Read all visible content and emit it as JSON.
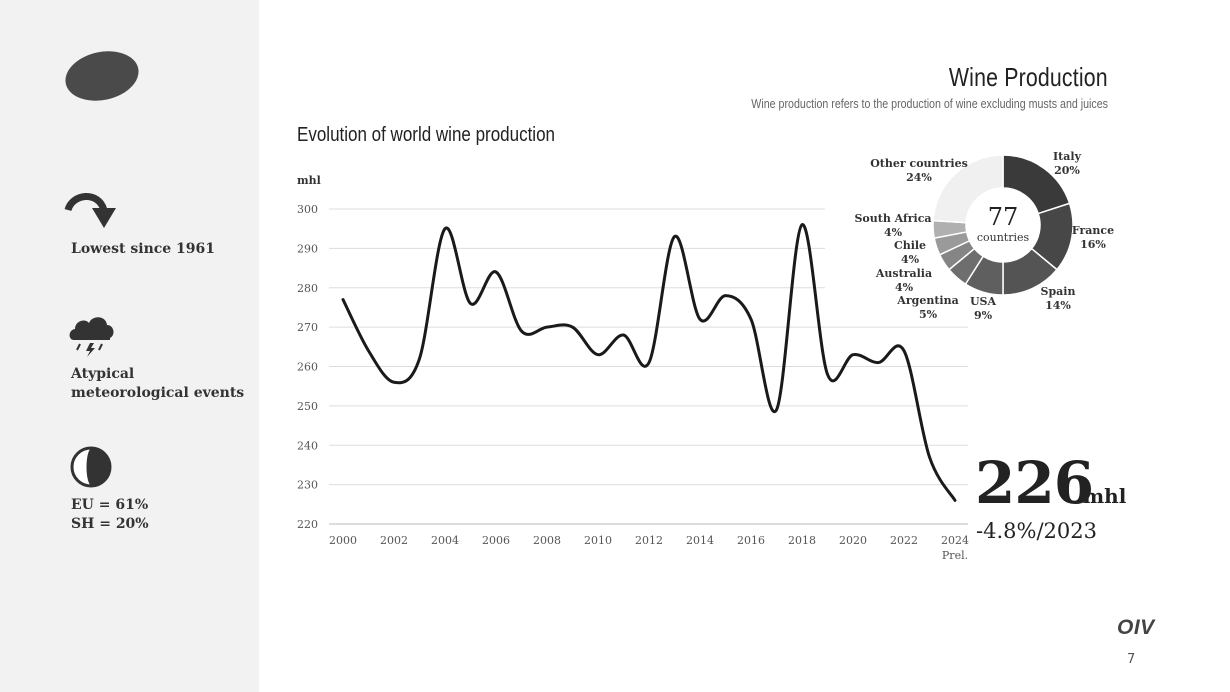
{
  "header": {
    "title": "Wine Production",
    "subtitle": "Wine production refers to the production of wine excluding musts and juices"
  },
  "sidebar": {
    "items": [
      {
        "icon": "curved-arrow-down-icon",
        "text": "Lowest since 1961"
      },
      {
        "icon": "storm-cloud-icon",
        "text": "Atypical\nmeteorological events"
      },
      {
        "icon": "half-circle-icon",
        "text": "EU = 61%\nSH = 20%"
      }
    ]
  },
  "highlight": {
    "value": "226",
    "unit": "mhl",
    "change": "-4.8%/2023"
  },
  "footer": {
    "logo": "OIV",
    "page": "7"
  },
  "chart_data": [
    {
      "type": "line",
      "title": "Evolution of world wine production",
      "ylabel": "mhl",
      "xlabel": "",
      "ylim": [
        220,
        300
      ],
      "yticks": [
        "220",
        "230",
        "240",
        "250",
        "260",
        "270",
        "280",
        "290",
        "300"
      ],
      "xticks": [
        "2000",
        "2002",
        "2004",
        "2006",
        "2008",
        "2010",
        "2012",
        "2014",
        "2016",
        "2018",
        "2020",
        "2022",
        "2024"
      ],
      "xtick_note": {
        "x": 2024,
        "text": "Prel."
      },
      "grid": true,
      "line_color": "#1a1a1a",
      "x": [
        2000,
        2001,
        2002,
        2003,
        2004,
        2005,
        2006,
        2007,
        2008,
        2009,
        2010,
        2011,
        2012,
        2013,
        2014,
        2015,
        2016,
        2017,
        2018,
        2019,
        2020,
        2021,
        2022,
        2023,
        2024
      ],
      "y": [
        277,
        264,
        256,
        262,
        295,
        276,
        284,
        269,
        270,
        270,
        263,
        268,
        261,
        293,
        272,
        278,
        272,
        249,
        296,
        258,
        263,
        261,
        264,
        237,
        226
      ]
    },
    {
      "type": "pie",
      "style": "donut",
      "center_value": "77",
      "center_label": "countries",
      "slices": [
        {
          "label": "Italy",
          "value": 20,
          "display": "20%",
          "color": "#3a3a3a"
        },
        {
          "label": "France",
          "value": 16,
          "display": "16%",
          "color": "#474747"
        },
        {
          "label": "Spain",
          "value": 14,
          "display": "14%",
          "color": "#545454"
        },
        {
          "label": "USA",
          "value": 9,
          "display": "9%",
          "color": "#5f5f5f"
        },
        {
          "label": "Argentina",
          "value": 5,
          "display": "5%",
          "color": "#6e6e6e"
        },
        {
          "label": "Australia",
          "value": 4,
          "display": "4%",
          "color": "#858585"
        },
        {
          "label": "Chile",
          "value": 4,
          "display": "4%",
          "color": "#9a9a9a"
        },
        {
          "label": "South Africa",
          "value": 4,
          "display": "4%",
          "color": "#b0b0b0"
        },
        {
          "label": "Other countries",
          "value": 24,
          "display": "24%",
          "color": "#f0f0f0"
        }
      ]
    }
  ]
}
